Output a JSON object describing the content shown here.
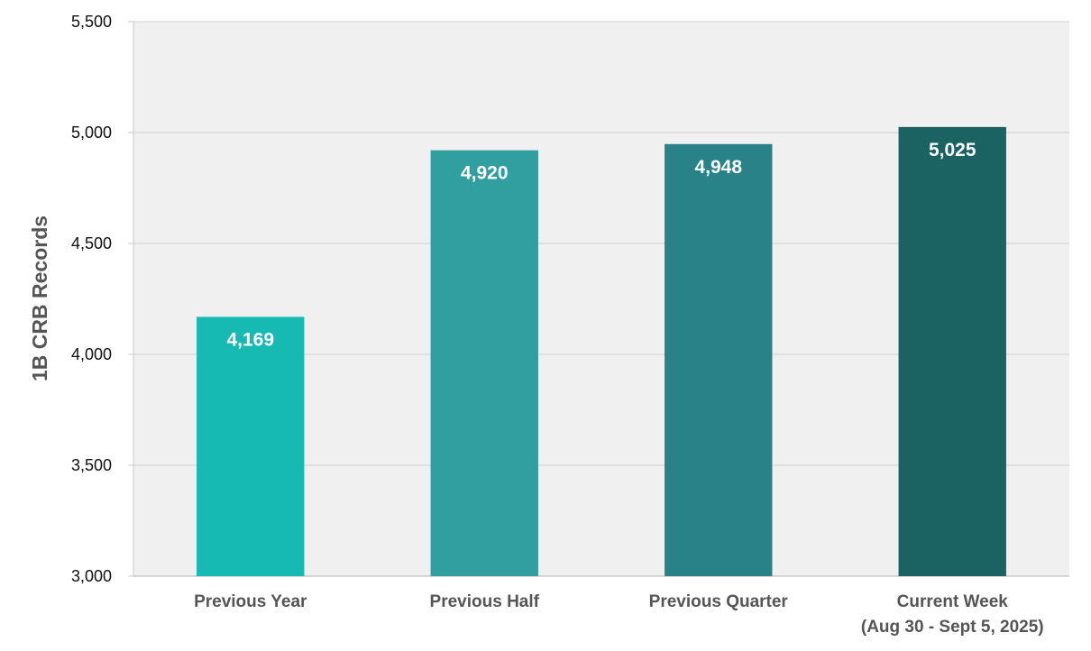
{
  "chart_data": {
    "type": "bar",
    "title": "",
    "xlabel": "",
    "ylabel": "1B CRB Records",
    "ylim": [
      3000,
      5500
    ],
    "yticks": [
      3000,
      3500,
      4000,
      4500,
      5000,
      5500
    ],
    "ytick_labels": [
      "3,000",
      "3,500",
      "4,000",
      "4,500",
      "5,000",
      "5,500"
    ],
    "grid": true,
    "categories": [
      [
        "Previous Year"
      ],
      [
        "Previous Half"
      ],
      [
        "Previous Quarter"
      ],
      [
        "Current Week",
        "(Aug 30 - Sept 5, 2025)"
      ]
    ],
    "values": [
      4169,
      4920,
      4948,
      5025
    ],
    "data_labels": [
      "4,169",
      "4,920",
      "4,948",
      "5,025"
    ],
    "colors": [
      "#17bab2",
      "#319fa0",
      "#298287",
      "#1b6262"
    ],
    "plot_background": "#f0f0f0",
    "gridline_color": "#d6d6d6"
  }
}
